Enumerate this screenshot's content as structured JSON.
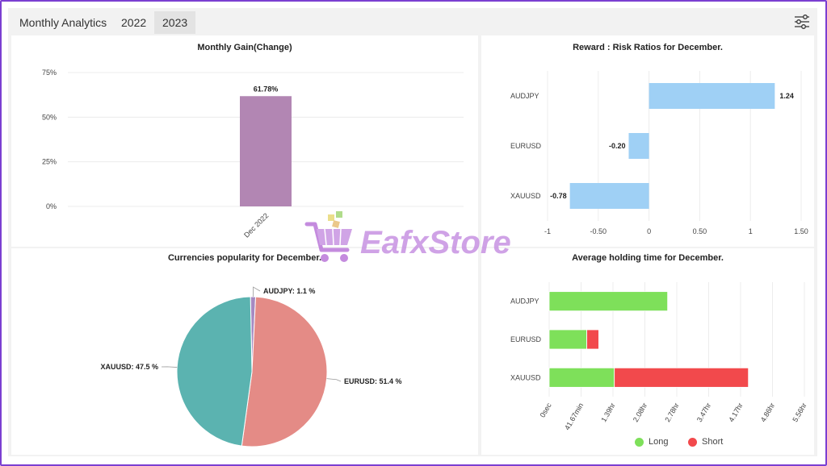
{
  "header": {
    "title": "Monthly Analytics",
    "tabs": [
      {
        "label": "2022",
        "active": false
      },
      {
        "label": "2023",
        "active": true
      }
    ]
  },
  "watermark": {
    "text": "EafxStore"
  },
  "colors": {
    "gain_bar": "#b286b3",
    "rr_bar": "#9fd0f5",
    "pie_teal": "#5bb3b0",
    "pie_red": "#e48b86",
    "pie_purple": "#a68ac2",
    "long": "#7ee05a",
    "short": "#f2494c"
  },
  "chart_data": [
    {
      "type": "bar",
      "title": "Monthly Gain(Change)",
      "categories": [
        "Dec 2022"
      ],
      "values": [
        61.78
      ],
      "data_labels": [
        "61.78%"
      ],
      "yticks": [
        "0%",
        "25%",
        "50%",
        "75%"
      ],
      "ylim": [
        0,
        75
      ],
      "grid": true
    },
    {
      "type": "bar",
      "orientation": "horizontal",
      "title": "Reward : Risk Ratios for December.",
      "categories": [
        "AUDJPY",
        "EURUSD",
        "XAUUSD"
      ],
      "values": [
        1.24,
        -0.2,
        -0.78
      ],
      "data_labels": [
        "1.24",
        "-0.20",
        "-0.78"
      ],
      "xticks": [
        "-1",
        "-0.50",
        "0",
        "0.50",
        "1",
        "1.50"
      ],
      "xlim": [
        -1,
        1.5
      ],
      "grid": true
    },
    {
      "type": "pie",
      "title": "Currencies popularity for December.",
      "slices": [
        {
          "label": "AUDJPY",
          "value": 1.1,
          "text": "AUDJPY: 1.1 %"
        },
        {
          "label": "EURUSD",
          "value": 51.4,
          "text": "EURUSD: 51.4 %"
        },
        {
          "label": "XAUUSD",
          "value": 47.5,
          "text": "XAUUSD: 47.5 %"
        }
      ]
    },
    {
      "type": "bar",
      "orientation": "horizontal",
      "stacked": true,
      "title": "Average holding time for December.",
      "categories": [
        "AUDJPY",
        "EURUSD",
        "XAUUSD"
      ],
      "xticks": [
        "0sec",
        "41.67min",
        "1.39hr",
        "2.08hr",
        "2.78hr",
        "3.47hr",
        "4.17hr",
        "4.86hr",
        "5.56hr"
      ],
      "xlim": [
        0,
        5.56
      ],
      "series": [
        {
          "name": "Long",
          "values": [
            2.58,
            0.82,
            1.42
          ]
        },
        {
          "name": "Short",
          "values": [
            0,
            0.26,
            2.92
          ]
        }
      ],
      "legend": [
        "Long",
        "Short"
      ],
      "legend_position": "bottom"
    }
  ]
}
